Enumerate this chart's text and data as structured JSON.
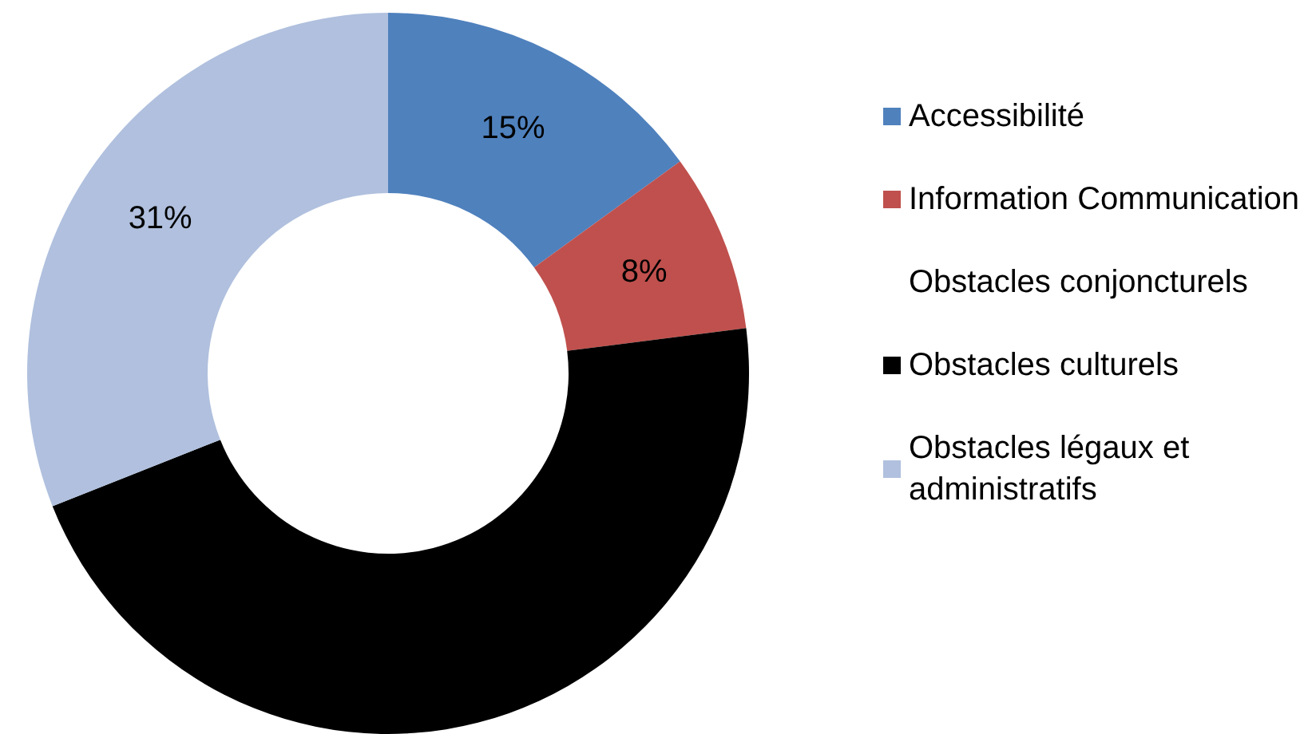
{
  "chart_data": {
    "type": "donut",
    "categories": [
      "Accessibilité",
      "Information Communication",
      "Obstacles conjoncturels",
      "Obstacles culturels",
      "Obstacles légaux et administratifs"
    ],
    "values": [
      15,
      8,
      0,
      46,
      31
    ],
    "colors": [
      "#4f81bd",
      "#c0504d",
      "#ffffff",
      "#000000",
      "#b0c0de"
    ],
    "value_labels": [
      "15%",
      "8%",
      null,
      null,
      "31%"
    ],
    "legend": "right"
  }
}
